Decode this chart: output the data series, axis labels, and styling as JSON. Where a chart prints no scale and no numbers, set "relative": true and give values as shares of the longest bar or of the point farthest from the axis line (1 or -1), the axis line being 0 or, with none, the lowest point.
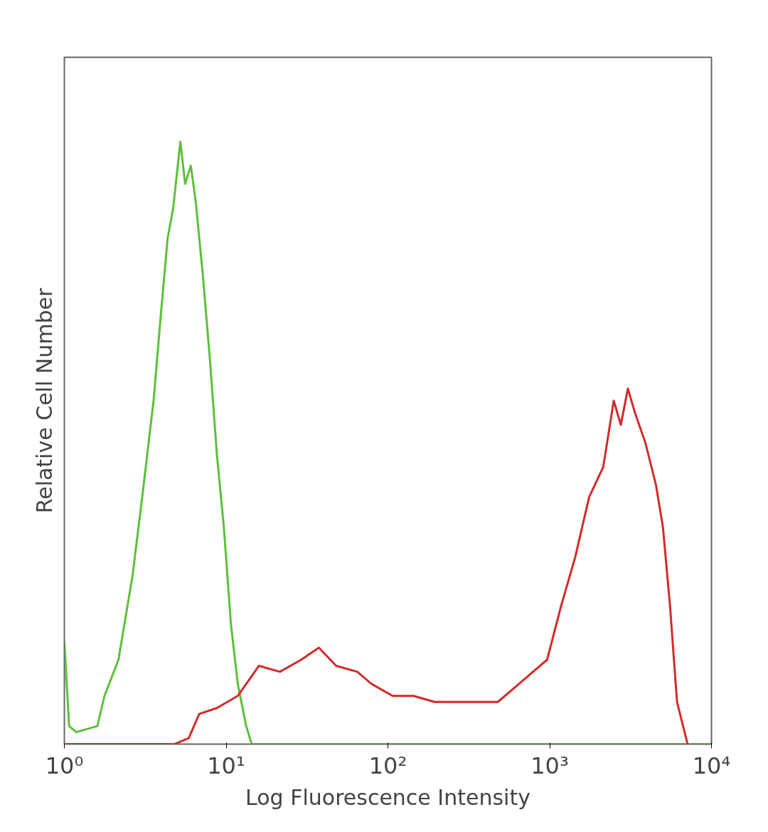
{
  "chart_data": {
    "type": "line",
    "xlabel": "Log Fluorescence Intensity",
    "ylabel": "Relative Cell Number",
    "relative": true,
    "log": "x",
    "grid": false,
    "tick_labels": "x",
    "marker": "none",
    "line_style": "solid",
    "xlim": [
      1,
      10000
    ],
    "xticks": [
      {
        "value": 1,
        "label": "10⁰"
      },
      {
        "value": 10,
        "label": "10¹"
      },
      {
        "value": 100,
        "label": "10²"
      },
      {
        "value": 1000,
        "label": "10³"
      },
      {
        "value": 10000,
        "label": "10⁴"
      }
    ],
    "series": [
      {
        "color": "#5cbf3a",
        "x": [
          1,
          1.07,
          1.185,
          1.6,
          1.77,
          2.16,
          2.64,
          3.06,
          3.56,
          3.94,
          4.35,
          4.71,
          5.21,
          5.58,
          6.05,
          6.49,
          7.17,
          7.93,
          8.77,
          9.68,
          10.7,
          11.8,
          13.3,
          14.4,
          19.5,
          32.1,
          64.7,
          1064,
          10000
        ],
        "values": [
          0.17,
          0.03,
          0.02,
          0.03,
          0.08,
          0.14,
          0.28,
          0.42,
          0.57,
          0.71,
          0.84,
          0.89,
          1.0,
          0.93,
          0.96,
          0.9,
          0.78,
          0.64,
          0.48,
          0.36,
          0.2,
          0.1,
          0.03,
          0,
          0,
          0,
          0,
          0,
          0
        ]
      },
      {
        "color": "#d42a2a",
        "x": [
          1,
          4.81,
          5.87,
          6.82,
          8.77,
          11.8,
          15.96,
          21.5,
          29.1,
          37.4,
          47.9,
          64.7,
          79.1,
          107,
          144,
          194,
          263,
          354,
          478,
          646,
          789,
          964,
          1178,
          1437,
          1754,
          2143,
          2489,
          2752,
          3043,
          3365,
          3908,
          4539,
          5013,
          5542,
          6125,
          7118
        ],
        "values": [
          0,
          0,
          0.01,
          0.05,
          0.06,
          0.08,
          0.13,
          0.12,
          0.14,
          0.16,
          0.13,
          0.12,
          0.1,
          0.08,
          0.08,
          0.07,
          0.07,
          0.07,
          0.07,
          0.1,
          0.12,
          0.14,
          0.23,
          0.31,
          0.41,
          0.46,
          0.57,
          0.53,
          0.59,
          0.55,
          0.5,
          0.43,
          0.36,
          0.23,
          0.07,
          0
        ]
      }
    ]
  }
}
